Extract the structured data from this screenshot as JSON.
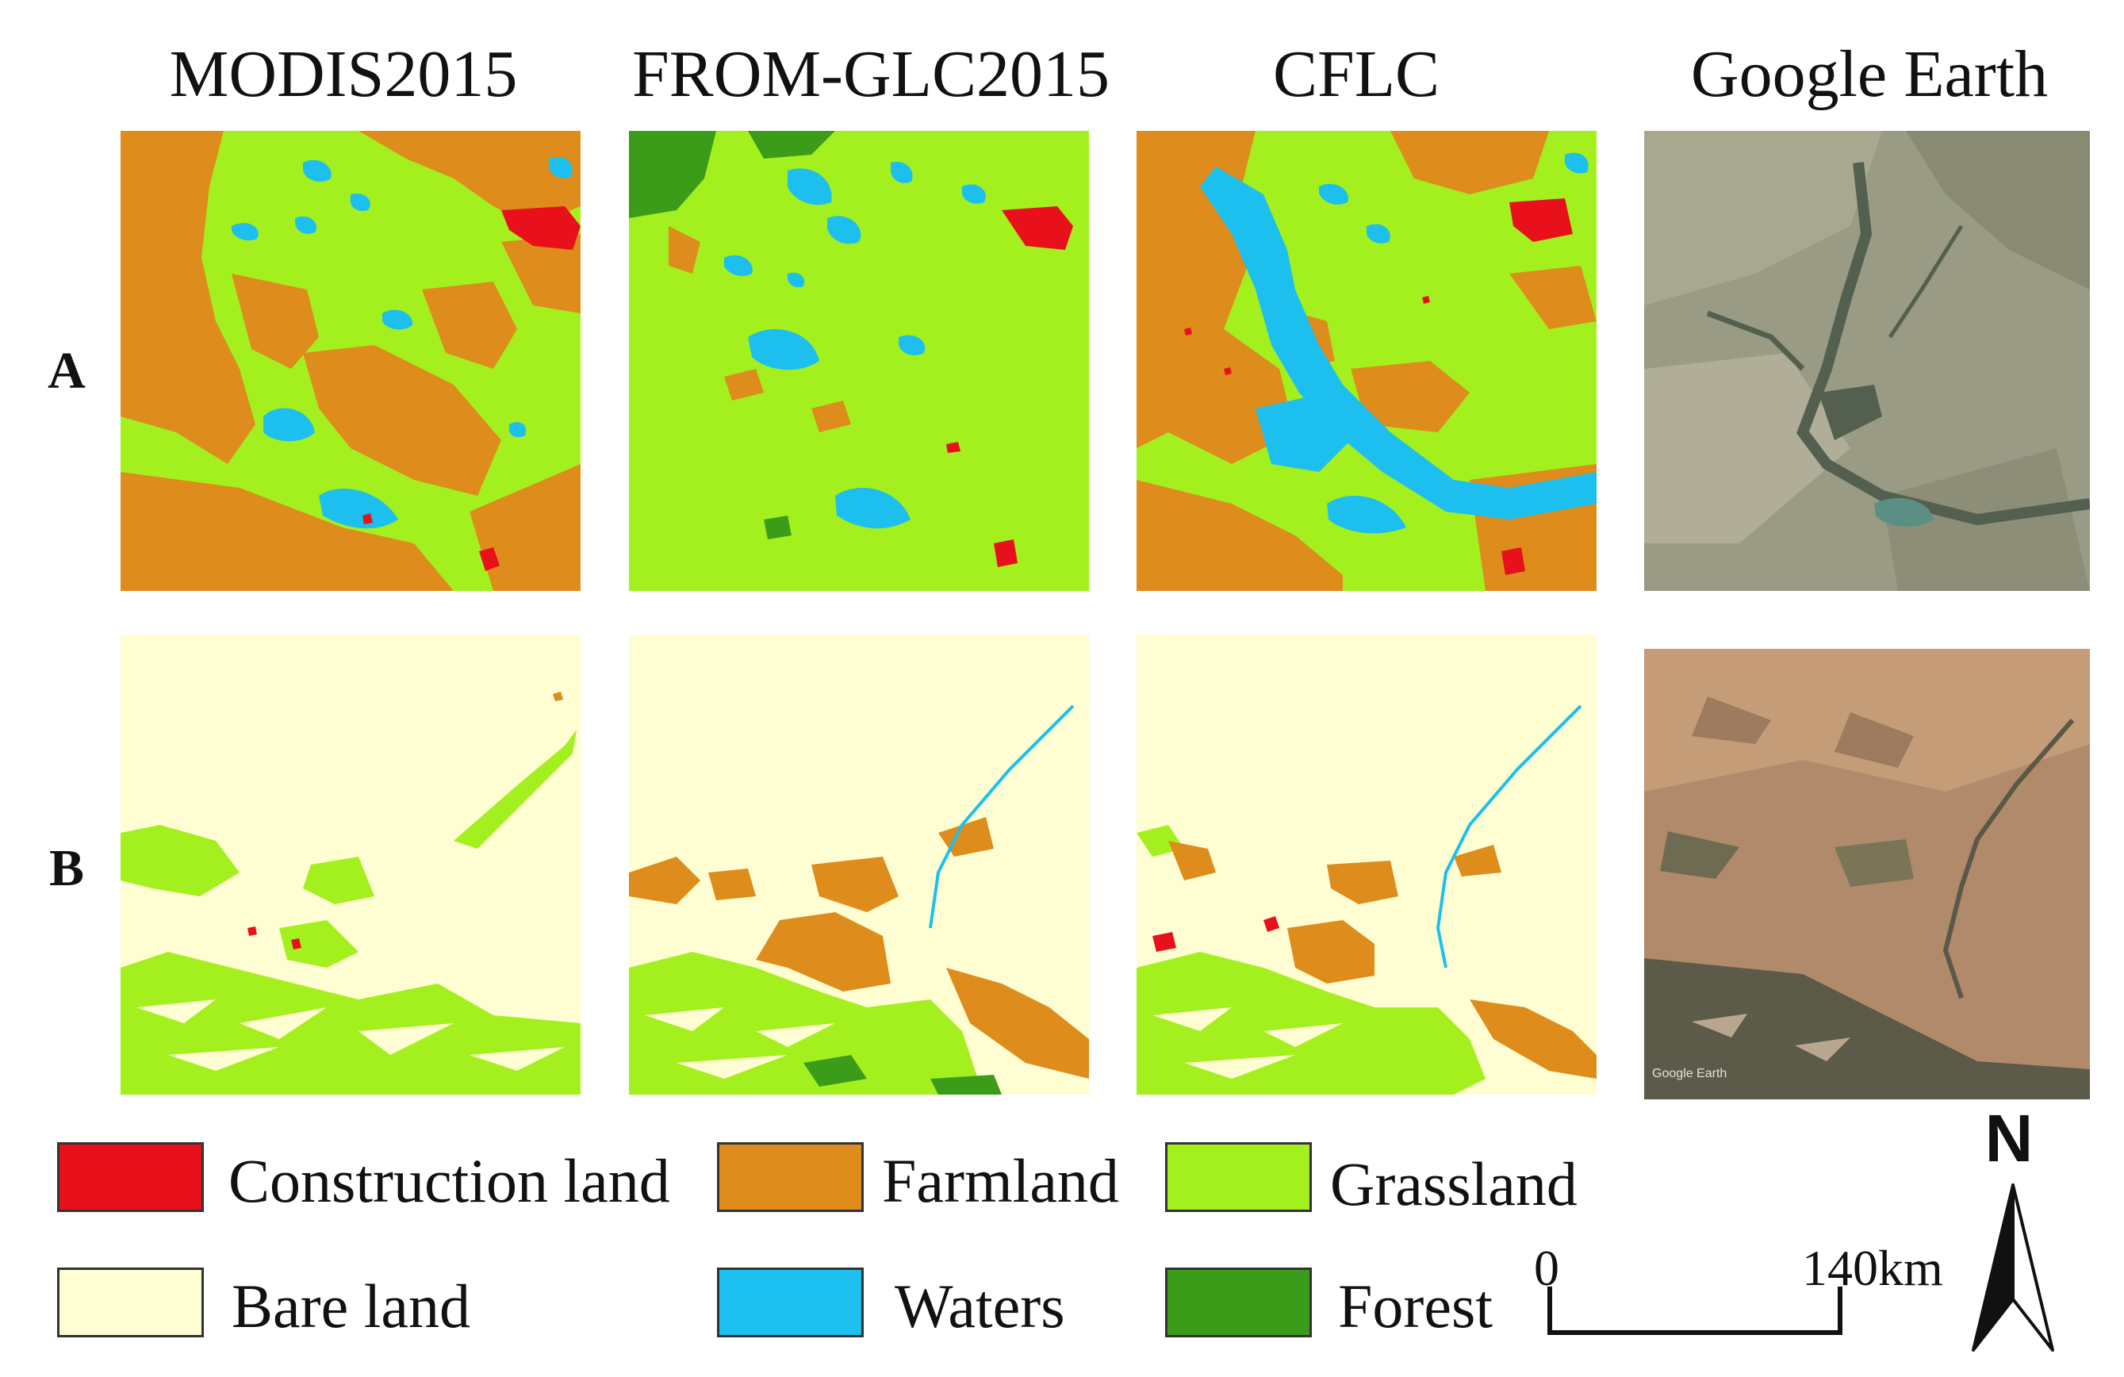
{
  "columns": [
    "MODIS2015",
    "FROM-GLC2015",
    "CFLC",
    "Google Earth"
  ],
  "rows": [
    "A",
    "B"
  ],
  "photo_watermark": "Google Earth",
  "legend": [
    {
      "label": "Construction land",
      "color": "#e8101a"
    },
    {
      "label": "Farmland",
      "color": "#de8c1c"
    },
    {
      "label": "Grassland",
      "color": "#a3f01e"
    },
    {
      "label": "Bare land",
      "color": "#fffdd2"
    },
    {
      "label": "Waters",
      "color": "#1cbfee"
    },
    {
      "label": "Forest",
      "color": "#3b9c1a"
    }
  ],
  "scale_bar": {
    "start": "0",
    "end": "140km"
  },
  "north_arrow": {
    "label": "N"
  }
}
